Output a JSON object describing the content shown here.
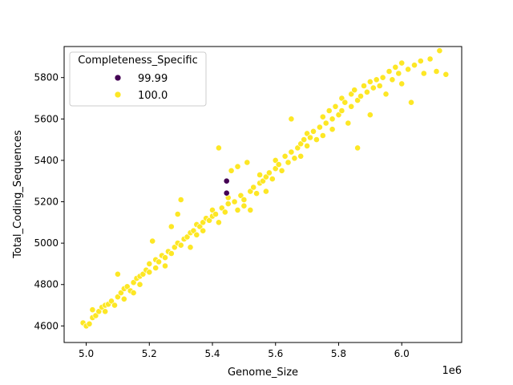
{
  "chart_data": {
    "type": "scatter",
    "title": "",
    "xlabel": "Genome_Size",
    "ylabel": "Total_Coding_Sequences",
    "x_offset_label": "1e6",
    "xlim": [
      4.93,
      6.19
    ],
    "ylim": [
      4520,
      5950
    ],
    "x_unit_multiplier": 1000000,
    "x_ticks": [
      5.0,
      5.2,
      5.4,
      5.6,
      5.8,
      6.0
    ],
    "x_tick_labels": [
      "5.0",
      "5.2",
      "5.4",
      "5.6",
      "5.8",
      "6.0"
    ],
    "y_ticks": [
      4600,
      4800,
      5000,
      5200,
      5400,
      5600,
      5800
    ],
    "y_tick_labels": [
      "4600",
      "4800",
      "5000",
      "5200",
      "5400",
      "5600",
      "5800"
    ],
    "grid": false,
    "legend": {
      "title": "Completeness_Specific",
      "placement": "top-left",
      "entries": [
        {
          "label": "99.99",
          "color": "#440154"
        },
        {
          "label": "100.0",
          "color": "#fde725"
        }
      ]
    },
    "series": [
      {
        "name": "99.99",
        "color": "#440154",
        "points": [
          [
            5.445,
            5300
          ],
          [
            5.445,
            5242
          ]
        ]
      },
      {
        "name": "100.0",
        "color": "#fde725",
        "points": [
          [
            4.99,
            4615
          ],
          [
            5.0,
            4600
          ],
          [
            5.01,
            4610
          ],
          [
            5.02,
            4640
          ],
          [
            5.02,
            4678
          ],
          [
            5.03,
            4650
          ],
          [
            5.04,
            4670
          ],
          [
            5.05,
            4690
          ],
          [
            5.06,
            4700
          ],
          [
            5.06,
            4670
          ],
          [
            5.07,
            4705
          ],
          [
            5.08,
            4720
          ],
          [
            5.09,
            4700
          ],
          [
            5.1,
            4740
          ],
          [
            5.1,
            4850
          ],
          [
            5.11,
            4760
          ],
          [
            5.12,
            4780
          ],
          [
            5.12,
            4730
          ],
          [
            5.13,
            4790
          ],
          [
            5.14,
            4770
          ],
          [
            5.15,
            4810
          ],
          [
            5.15,
            4760
          ],
          [
            5.16,
            4830
          ],
          [
            5.17,
            4840
          ],
          [
            5.17,
            4800
          ],
          [
            5.18,
            4850
          ],
          [
            5.19,
            4870
          ],
          [
            5.2,
            4860
          ],
          [
            5.2,
            4900
          ],
          [
            5.21,
            5010
          ],
          [
            5.22,
            4880
          ],
          [
            5.22,
            4920
          ],
          [
            5.23,
            4910
          ],
          [
            5.24,
            4940
          ],
          [
            5.25,
            4930
          ],
          [
            5.25,
            4890
          ],
          [
            5.26,
            4960
          ],
          [
            5.27,
            4950
          ],
          [
            5.27,
            5080
          ],
          [
            5.28,
            4980
          ],
          [
            5.29,
            5000
          ],
          [
            5.29,
            5140
          ],
          [
            5.3,
            5210
          ],
          [
            5.3,
            4990
          ],
          [
            5.31,
            5020
          ],
          [
            5.32,
            5030
          ],
          [
            5.33,
            5050
          ],
          [
            5.33,
            4980
          ],
          [
            5.34,
            5060
          ],
          [
            5.35,
            5040
          ],
          [
            5.35,
            5090
          ],
          [
            5.36,
            5080
          ],
          [
            5.37,
            5100
          ],
          [
            5.37,
            5060
          ],
          [
            5.38,
            5120
          ],
          [
            5.39,
            5110
          ],
          [
            5.4,
            5130
          ],
          [
            5.4,
            5160
          ],
          [
            5.41,
            5140
          ],
          [
            5.42,
            5460
          ],
          [
            5.42,
            5100
          ],
          [
            5.43,
            5170
          ],
          [
            5.44,
            5150
          ],
          [
            5.45,
            5190
          ],
          [
            5.45,
            5220
          ],
          [
            5.46,
            5350
          ],
          [
            5.47,
            5200
          ],
          [
            5.48,
            5370
          ],
          [
            5.48,
            5160
          ],
          [
            5.49,
            5230
          ],
          [
            5.5,
            5210
          ],
          [
            5.5,
            5180
          ],
          [
            5.51,
            5390
          ],
          [
            5.52,
            5250
          ],
          [
            5.52,
            5160
          ],
          [
            5.53,
            5270
          ],
          [
            5.54,
            5240
          ],
          [
            5.55,
            5290
          ],
          [
            5.55,
            5330
          ],
          [
            5.56,
            5300
          ],
          [
            5.57,
            5320
          ],
          [
            5.57,
            5250
          ],
          [
            5.58,
            5340
          ],
          [
            5.59,
            5310
          ],
          [
            5.6,
            5360
          ],
          [
            5.6,
            5400
          ],
          [
            5.61,
            5380
          ],
          [
            5.62,
            5350
          ],
          [
            5.63,
            5420
          ],
          [
            5.64,
            5390
          ],
          [
            5.65,
            5600
          ],
          [
            5.65,
            5440
          ],
          [
            5.66,
            5410
          ],
          [
            5.67,
            5460
          ],
          [
            5.68,
            5480
          ],
          [
            5.68,
            5420
          ],
          [
            5.69,
            5500
          ],
          [
            5.7,
            5470
          ],
          [
            5.7,
            5530
          ],
          [
            5.71,
            5510
          ],
          [
            5.72,
            5540
          ],
          [
            5.73,
            5500
          ],
          [
            5.74,
            5560
          ],
          [
            5.75,
            5520
          ],
          [
            5.75,
            5610
          ],
          [
            5.76,
            5580
          ],
          [
            5.77,
            5640
          ],
          [
            5.78,
            5550
          ],
          [
            5.78,
            5600
          ],
          [
            5.79,
            5660
          ],
          [
            5.8,
            5620
          ],
          [
            5.81,
            5700
          ],
          [
            5.81,
            5640
          ],
          [
            5.82,
            5680
          ],
          [
            5.83,
            5580
          ],
          [
            5.84,
            5720
          ],
          [
            5.84,
            5660
          ],
          [
            5.85,
            5740
          ],
          [
            5.86,
            5690
          ],
          [
            5.86,
            5460
          ],
          [
            5.87,
            5710
          ],
          [
            5.88,
            5760
          ],
          [
            5.89,
            5730
          ],
          [
            5.9,
            5780
          ],
          [
            5.9,
            5620
          ],
          [
            5.91,
            5750
          ],
          [
            5.92,
            5790
          ],
          [
            5.93,
            5760
          ],
          [
            5.94,
            5800
          ],
          [
            5.95,
            5720
          ],
          [
            5.96,
            5830
          ],
          [
            5.97,
            5790
          ],
          [
            5.98,
            5850
          ],
          [
            5.99,
            5820
          ],
          [
            6.0,
            5770
          ],
          [
            6.0,
            5870
          ],
          [
            6.02,
            5840
          ],
          [
            6.03,
            5680
          ],
          [
            6.04,
            5860
          ],
          [
            6.06,
            5880
          ],
          [
            6.07,
            5820
          ],
          [
            6.09,
            5890
          ],
          [
            6.11,
            5830
          ],
          [
            6.12,
            5930
          ],
          [
            6.14,
            5815
          ]
        ]
      }
    ]
  }
}
